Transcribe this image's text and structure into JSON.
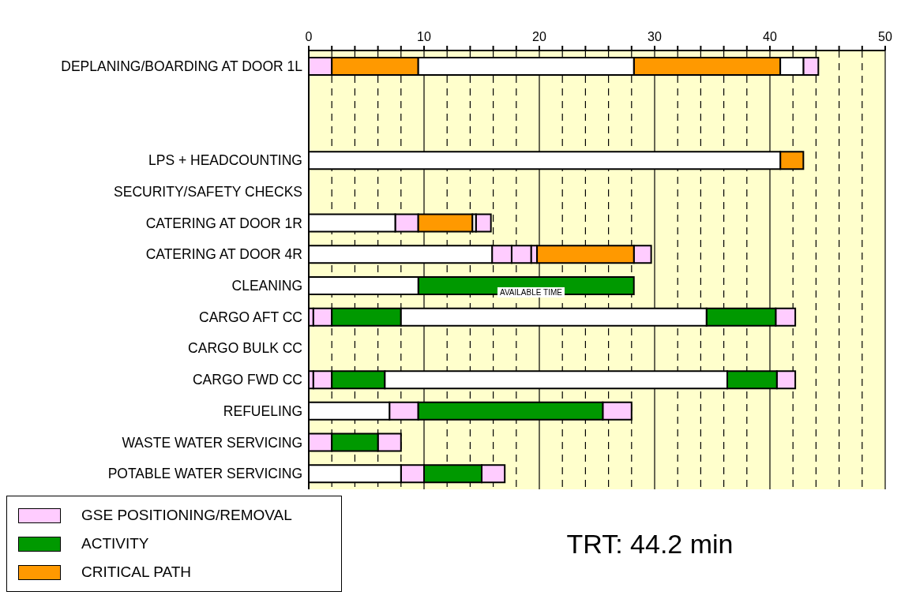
{
  "chart_data": {
    "type": "bar",
    "orientation": "horizontal",
    "categories": [
      "DEPLANING/BOARDING AT DOOR 1L",
      null,
      null,
      "LPS + HEADCOUNTING",
      "SECURITY/SAFETY CHECKS",
      "CATERING AT DOOR 1R",
      "CATERING AT DOOR 4R",
      "CLEANING",
      "CARGO AFT CC",
      "CARGO BULK CC",
      "CARGO FWD CC",
      "REFUELING",
      "WASTE WATER SERVICING",
      "POTABLE WATER SERVICING"
    ],
    "series": [
      {
        "name": "GSE POSITIONING/REMOVAL",
        "color": "#ffccff",
        "base": [
          0,
          null,
          null,
          null,
          null,
          7.5,
          15.9,
          null,
          0,
          null,
          0,
          7,
          0,
          8
        ],
        "values": [
          2,
          null,
          null,
          null,
          null,
          2,
          1.7,
          null,
          0.4,
          null,
          0.4,
          2.5,
          2,
          2
        ]
      },
      {
        "color": "#ffccff",
        "base": [
          42.9,
          null,
          null,
          null,
          null,
          14.5,
          17.6,
          null,
          0.4,
          null,
          0.4,
          25.5,
          6,
          15
        ],
        "values": [
          1.3,
          null,
          null,
          null,
          null,
          1.3,
          1.7,
          null,
          1.6,
          null,
          1.6,
          2.5,
          2,
          2
        ]
      },
      {
        "color": "#ffccff",
        "base": [
          null,
          null,
          null,
          null,
          null,
          null,
          19.3,
          null,
          40.5,
          null,
          40.6,
          null,
          null,
          null
        ],
        "values": [
          null,
          null,
          null,
          null,
          null,
          null,
          0.5,
          null,
          1.7,
          null,
          1.6,
          null,
          null,
          null
        ]
      },
      {
        "color": "#ffccff",
        "base": [
          null,
          null,
          null,
          null,
          null,
          null,
          28.2,
          null,
          null,
          null,
          null,
          null,
          null,
          null
        ],
        "values": [
          null,
          null,
          null,
          null,
          null,
          null,
          1.5,
          null,
          null,
          null,
          null,
          null,
          null,
          null
        ]
      },
      {
        "name": "ACTIVITY",
        "color": "#009900",
        "base": [
          null,
          null,
          null,
          null,
          null,
          null,
          null,
          9.5,
          2,
          null,
          2,
          9.5,
          2,
          10
        ],
        "values": [
          null,
          null,
          null,
          null,
          null,
          null,
          null,
          18.7,
          6,
          null,
          4.6,
          16,
          4,
          5
        ]
      },
      {
        "color": "#009900",
        "base": [
          null,
          null,
          null,
          null,
          null,
          null,
          null,
          null,
          34.5,
          null,
          36.3,
          null,
          null,
          null
        ],
        "values": [
          null,
          null,
          null,
          null,
          null,
          null,
          null,
          null,
          6,
          null,
          4.3,
          null,
          null,
          null
        ]
      },
      {
        "name": "CRITICAL PATH",
        "color": "#ff9900",
        "base": [
          2,
          null,
          null,
          40.9,
          null,
          9.5,
          19.8,
          null,
          null,
          null,
          null,
          null,
          null,
          null
        ],
        "values": [
          7.5,
          null,
          null,
          2,
          null,
          4.7,
          8.4,
          null,
          null,
          null,
          null,
          null,
          null,
          null
        ]
      },
      {
        "color": "#ff9900",
        "base": [
          28.2,
          null,
          null,
          null,
          null,
          null,
          null,
          null,
          null,
          null,
          null,
          null,
          null,
          null
        ],
        "values": [
          12.7,
          null,
          null,
          null,
          null,
          null,
          null,
          null,
          null,
          null,
          null,
          null,
          null,
          null
        ]
      },
      {
        "color": "#ffffff",
        "base": [
          9.5,
          null,
          null,
          0,
          null,
          0,
          0,
          0,
          8,
          null,
          6.6,
          0,
          null,
          0
        ],
        "values": [
          18.7,
          null,
          null,
          40.9,
          null,
          7.5,
          15.9,
          9.5,
          26.5,
          null,
          29.7,
          7,
          null,
          8
        ]
      },
      {
        "color": "#ffffff",
        "base": [
          40.9,
          null,
          null,
          null,
          null,
          14.2,
          null,
          null,
          null,
          null,
          null,
          null,
          null,
          null
        ],
        "values": [
          2,
          null,
          null,
          null,
          null,
          0.3,
          null,
          null,
          null,
          null,
          null,
          null,
          null,
          null
        ]
      }
    ],
    "xlim": [
      0,
      50
    ],
    "xticks": [
      0,
      {
        "value": 2,
        "label": null
      },
      {
        "value": 4,
        "label": null
      },
      {
        "value": 6,
        "label": null
      },
      {
        "value": 8,
        "label": null
      },
      10,
      {
        "value": 12,
        "label": null
      },
      {
        "value": 14,
        "label": null
      },
      {
        "value": 16,
        "label": null
      },
      {
        "value": 18,
        "label": null
      },
      20,
      {
        "value": 22,
        "label": null
      },
      {
        "value": 24,
        "label": null
      },
      {
        "value": 26,
        "label": null
      },
      {
        "value": 28,
        "label": null
      },
      30,
      {
        "value": 32,
        "label": null
      },
      {
        "value": 34,
        "label": null
      },
      {
        "value": 36,
        "label": null
      },
      {
        "value": 38,
        "label": null
      },
      40,
      {
        "value": 42,
        "label": null
      },
      {
        "value": 44,
        "label": null
      },
      {
        "value": 46,
        "label": null
      },
      {
        "value": 48,
        "label": null
      },
      50
    ],
    "grid": "x",
    "legend": "bottom left",
    "annotations": [
      "AVAILABLE TIME",
      "TRT: 44.2 min"
    ]
  }
}
